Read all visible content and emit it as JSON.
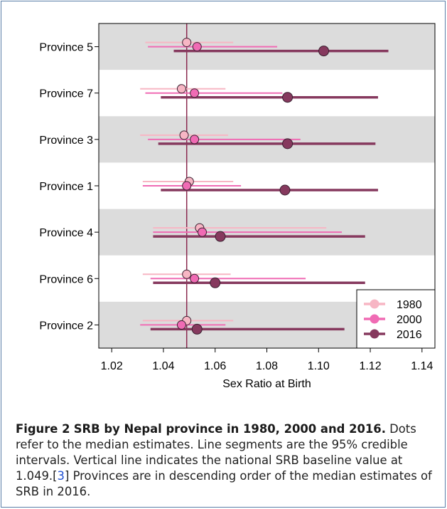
{
  "chart_data": {
    "type": "dot-interval",
    "xlabel": "Sex Ratio at Birth",
    "xlim": [
      1.015,
      1.145
    ],
    "x_ticks": [
      "1.02",
      "1.04",
      "1.06",
      "1.08",
      "1.10",
      "1.12",
      "1.14"
    ],
    "x_tick_values": [
      1.02,
      1.04,
      1.06,
      1.08,
      1.1,
      1.12,
      1.14
    ],
    "reference_line": 1.049,
    "categories": [
      "Province 5",
      "Province 7",
      "Province 3",
      "Province 1",
      "Province 4",
      "Province 6",
      "Province 2"
    ],
    "series": [
      {
        "name": "1980",
        "color": "#f7b6c4",
        "median": [
          1.049,
          1.047,
          1.048,
          1.05,
          1.054,
          1.049,
          1.049
        ],
        "lower": [
          1.033,
          1.031,
          1.031,
          1.032,
          1.036,
          1.032,
          1.032
        ],
        "upper": [
          1.067,
          1.064,
          1.065,
          1.067,
          1.103,
          1.066,
          1.067
        ]
      },
      {
        "name": "2000",
        "color": "#f06bb4",
        "median": [
          1.053,
          1.052,
          1.052,
          1.049,
          1.055,
          1.052,
          1.047
        ],
        "lower": [
          1.034,
          1.033,
          1.034,
          1.032,
          1.036,
          1.035,
          1.031
        ],
        "upper": [
          1.084,
          1.086,
          1.093,
          1.07,
          1.109,
          1.095,
          1.064
        ]
      },
      {
        "name": "2016",
        "color": "#86395e",
        "median": [
          1.102,
          1.088,
          1.088,
          1.087,
          1.062,
          1.06,
          1.053
        ],
        "lower": [
          1.044,
          1.039,
          1.038,
          1.039,
          1.036,
          1.036,
          1.035
        ],
        "upper": [
          1.127,
          1.123,
          1.122,
          1.123,
          1.118,
          1.118,
          1.11
        ]
      }
    ],
    "legend_position": "bottom-right",
    "colors": {
      "band": "#dcdcdc",
      "reference_line": "#8b2a4f"
    }
  },
  "caption": {
    "label": "Figure 2",
    "title": "SRB by Nepal province in 1980, 2000 and 2016.",
    "text_1": "Dots refer to the median estimates. Line segments are the 95% credible intervals. Vertical line indicates the national SRB baseline value at 1.049.[",
    "citation": "3",
    "text_2": "] Provinces are in descending order of the median estimates of SRB in 2016."
  }
}
